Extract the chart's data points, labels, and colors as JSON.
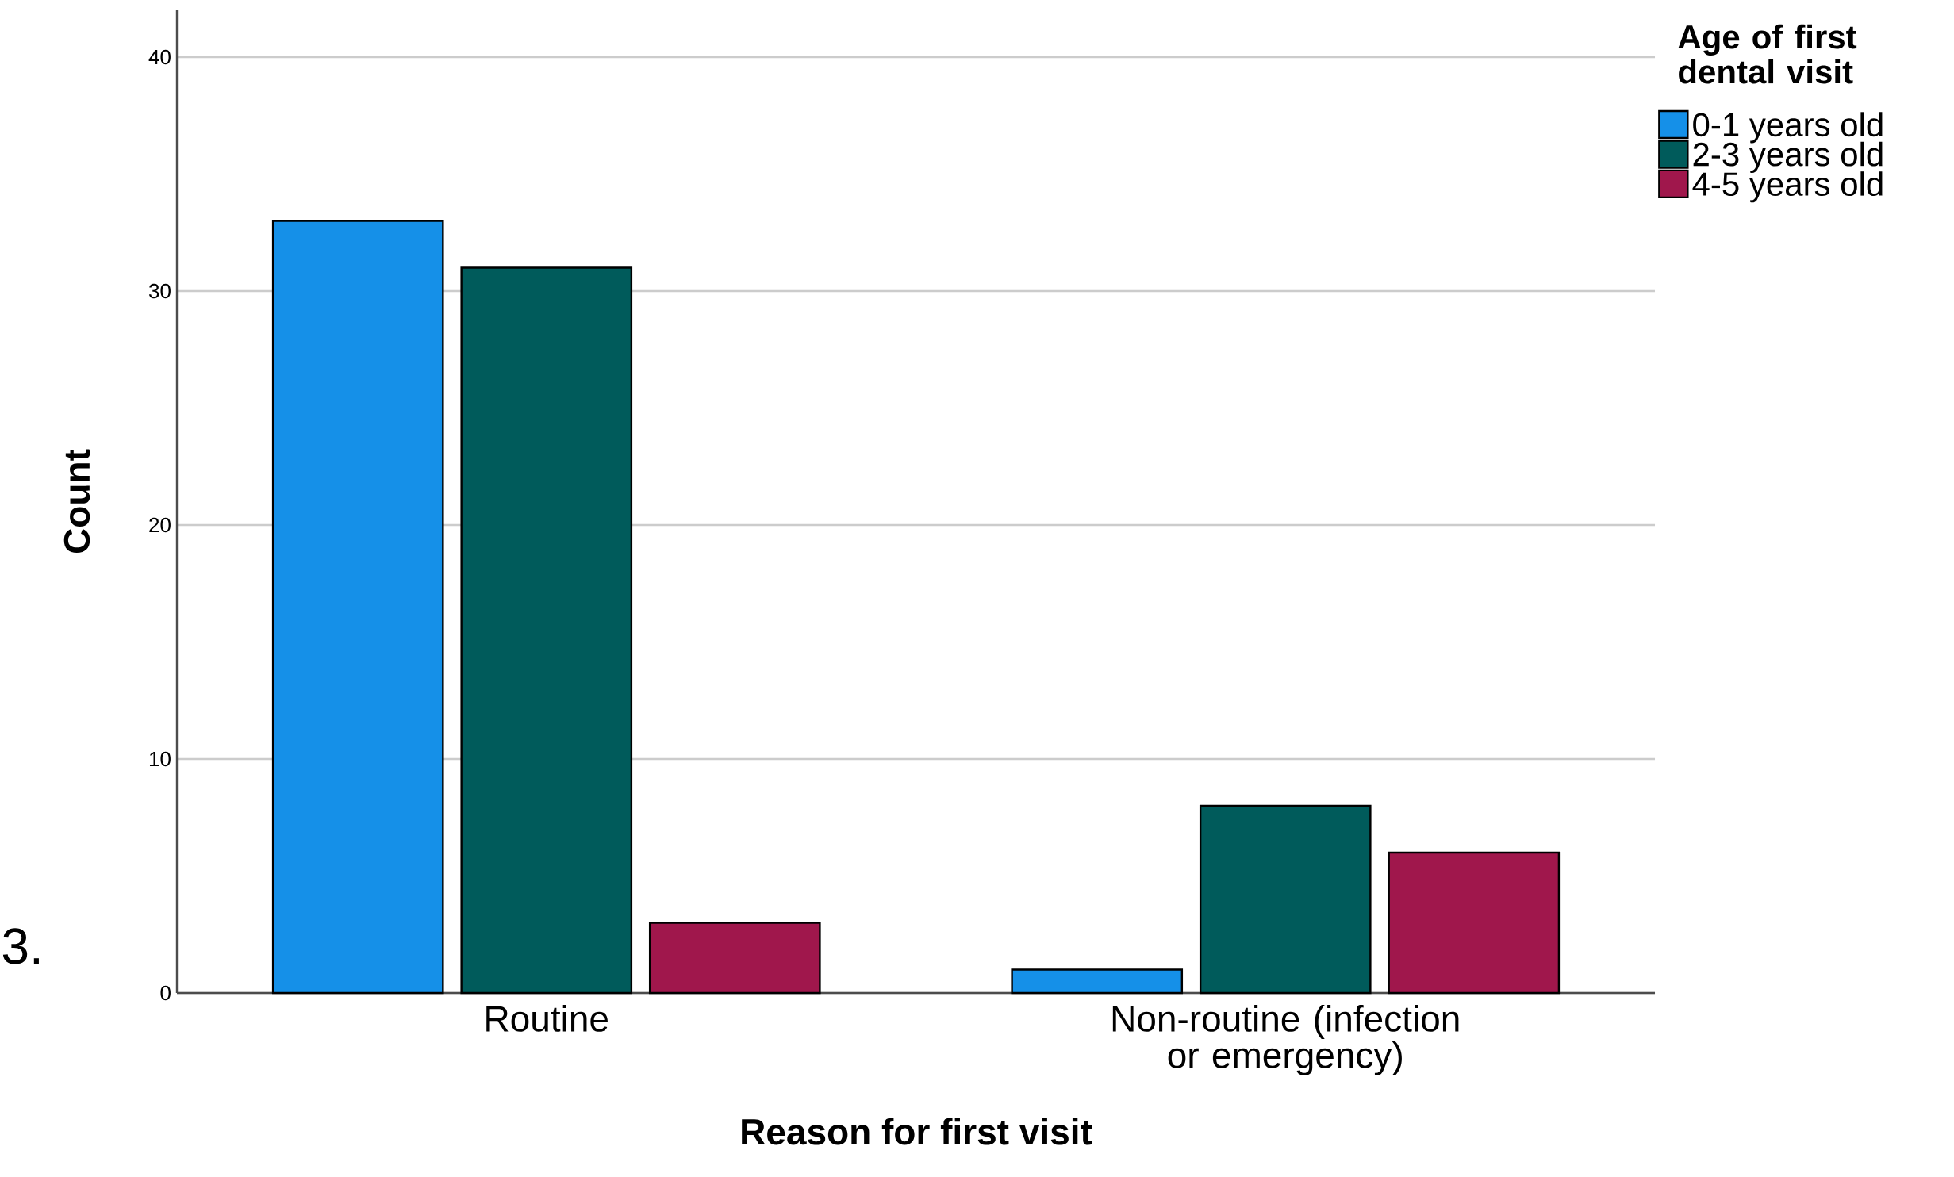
{
  "chart_data": {
    "type": "bar",
    "xlabel": "Reason for first visit",
    "ylabel": "Count",
    "legend_title": "Age of first dental visit",
    "legend": "top right",
    "grid": "y",
    "categories": [
      "Routine",
      "Non-routine (infection or emergency)"
    ],
    "series": [
      {
        "name": "0-1 years old",
        "color": "#1590e8",
        "values": [
          33,
          1
        ]
      },
      {
        "name": "2-3 years old",
        "color": "#005b5b",
        "values": [
          31,
          8
        ]
      },
      {
        "name": "4-5 years old",
        "color": "#a0174c",
        "values": [
          3,
          6
        ]
      }
    ],
    "ylim": [
      0,
      42
    ],
    "yticks": [
      0,
      10,
      20,
      30,
      40
    ],
    "annotations": [
      "3."
    ]
  }
}
